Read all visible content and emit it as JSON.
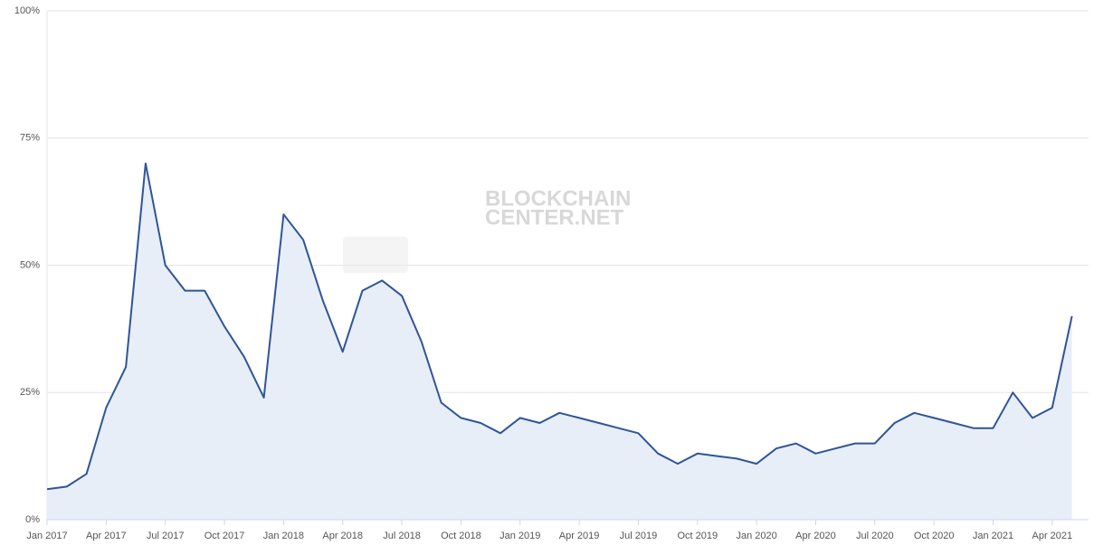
{
  "chart_data": {
    "type": "area",
    "watermark": [
      "BLOCKCHAIN",
      "CENTER.NET"
    ],
    "x": [
      "2017-01",
      "2017-02",
      "2017-03",
      "2017-04",
      "2017-05",
      "2017-06",
      "2017-07",
      "2017-08",
      "2017-09",
      "2017-10",
      "2017-11",
      "2017-12",
      "2018-01",
      "2018-02",
      "2018-03",
      "2018-04",
      "2018-05",
      "2018-06",
      "2018-07",
      "2018-08",
      "2018-09",
      "2018-10",
      "2018-11",
      "2018-12",
      "2019-01",
      "2019-02",
      "2019-03",
      "2019-04",
      "2019-05",
      "2019-06",
      "2019-07",
      "2019-08",
      "2019-09",
      "2019-10",
      "2019-11",
      "2019-12",
      "2020-01",
      "2020-02",
      "2020-03",
      "2020-04",
      "2020-05",
      "2020-06",
      "2020-07",
      "2020-08",
      "2020-09",
      "2020-10",
      "2020-11",
      "2020-12",
      "2021-01",
      "2021-02",
      "2021-03",
      "2021-04",
      "2021-05"
    ],
    "series": [
      {
        "color": "#2f5597",
        "fill": "#e8eef8",
        "values": [
          6,
          6.5,
          9,
          22,
          30,
          70,
          50,
          45,
          45,
          38,
          32,
          24,
          60,
          55,
          43,
          33,
          45,
          47,
          44,
          35,
          23,
          20,
          19,
          17,
          20,
          19,
          21,
          20,
          19,
          18,
          17,
          13,
          11,
          13,
          12.5,
          12,
          11,
          14,
          15,
          13,
          14,
          15,
          15,
          19,
          21,
          20,
          19,
          18,
          18,
          25,
          20,
          22,
          40
        ]
      }
    ],
    "xlim": [
      "2017-01",
      "2021-05"
    ],
    "xticks": [
      {
        "value": "2017-01",
        "label": "Jan 2017"
      },
      {
        "value": "2017-04",
        "label": "Apr 2017"
      },
      {
        "value": "2017-07",
        "label": "Jul 2017"
      },
      {
        "value": "2017-10",
        "label": "Oct 2017"
      },
      {
        "value": "2018-01",
        "label": "Jan 2018"
      },
      {
        "value": "2018-04",
        "label": "Apr 2018"
      },
      {
        "value": "2018-07",
        "label": "Jul 2018"
      },
      {
        "value": "2018-10",
        "label": "Oct 2018"
      },
      {
        "value": "2019-01",
        "label": "Jan 2019"
      },
      {
        "value": "2019-04",
        "label": "Apr 2019"
      },
      {
        "value": "2019-07",
        "label": "Jul 2019"
      },
      {
        "value": "2019-10",
        "label": "Oct 2019"
      },
      {
        "value": "2020-01",
        "label": "Jan 2020"
      },
      {
        "value": "2020-04",
        "label": "Apr 2020"
      },
      {
        "value": "2020-07",
        "label": "Jul 2020"
      },
      {
        "value": "2020-10",
        "label": "Oct 2020"
      },
      {
        "value": "2021-01",
        "label": "Jan 2021"
      },
      {
        "value": "2021-04",
        "label": "Apr 2021"
      }
    ],
    "ylim": [
      0,
      100
    ],
    "yticks": [
      {
        "value": 0,
        "label": "0%"
      },
      {
        "value": 25,
        "label": "25%"
      },
      {
        "value": 50,
        "label": "50%"
      },
      {
        "value": 75,
        "label": "75%"
      },
      {
        "value": 100,
        "label": "100%"
      }
    ],
    "grid": true
  }
}
